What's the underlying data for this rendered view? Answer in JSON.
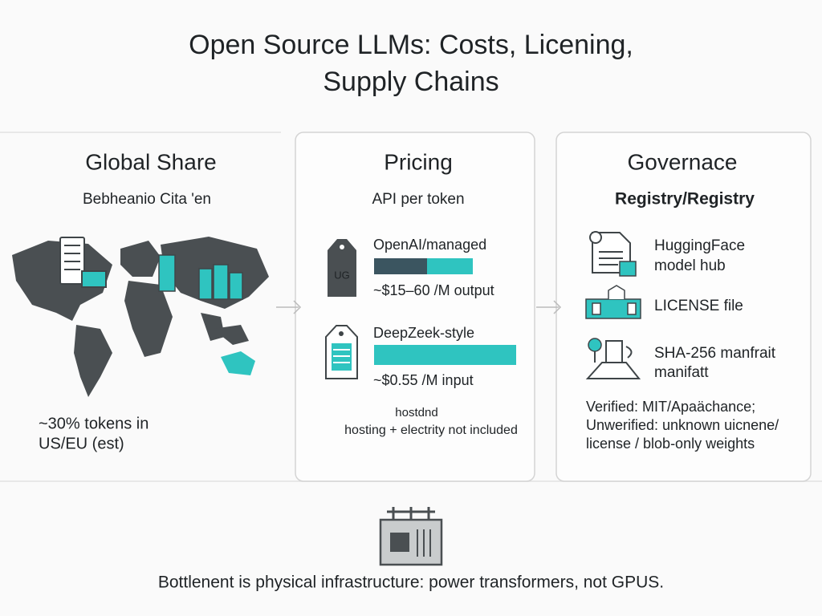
{
  "title": {
    "lines": [
      "Open Source LLMs: Costs, Licening,",
      "Supply Chains"
    ]
  },
  "panels": [
    {
      "title": "Global Share",
      "subtitle": "Bebheanio Cita 'en",
      "note": [
        "~30%  tokens in",
        "US/EU (est)"
      ]
    },
    {
      "title": "Pricing",
      "subtitle": "API per token",
      "items": [
        {
          "tag": "UG",
          "label": "OpenAI/managed",
          "price": "~$15–60 /M output"
        },
        {
          "label": "DeepZeek-style",
          "price": "~$0.55 /M input"
        }
      ],
      "footnote": [
        "hostdnd",
        "hosting + electrity not included"
      ]
    },
    {
      "title": "Governace",
      "subtitle": "Registry/Registry",
      "items": [
        {
          "label": [
            "HuggingFace",
            "model hub"
          ]
        },
        {
          "label": [
            "LICENSE file"
          ]
        },
        {
          "label": [
            "SHA-256 manfrait",
            "manifatt"
          ]
        }
      ],
      "footnote": [
        "Verified:  MIT/Apaächance;",
        "Unwerified: unknown uicnene/",
        "license / blob-only weights"
      ]
    }
  ],
  "footer": "Bottlenent is physical infrastructure: power transformers, not GPUS."
}
